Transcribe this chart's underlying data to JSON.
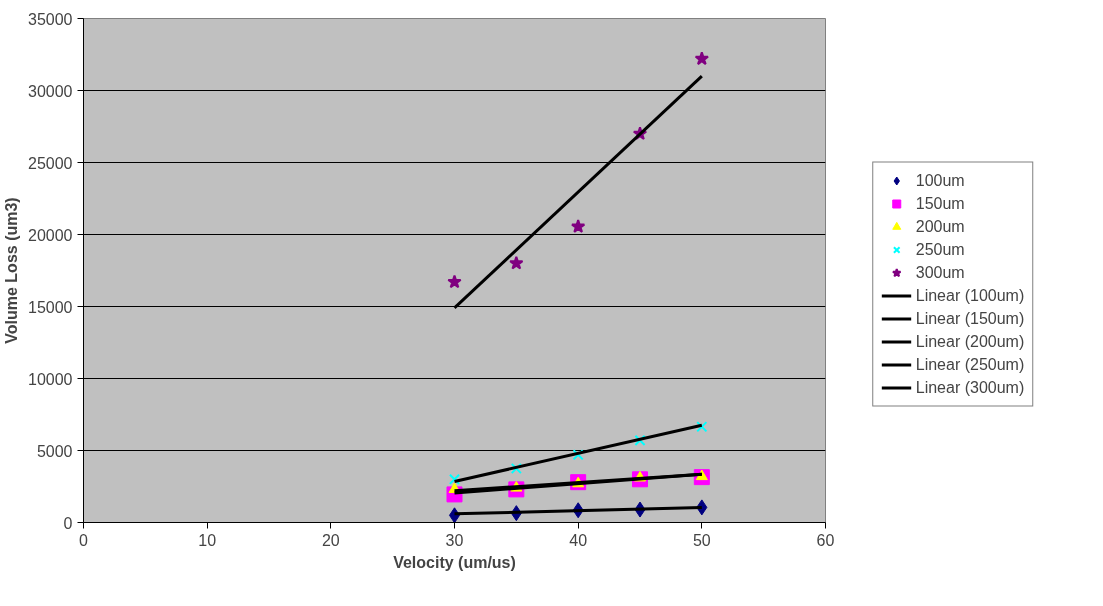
{
  "chart_data": {
    "type": "scatter",
    "xlabel": "Velocity (um/us)",
    "ylabel": "Volume Loss (um3)",
    "xlim": [
      0,
      60
    ],
    "xticks": [
      0,
      10,
      20,
      30,
      40,
      50,
      60
    ],
    "ylim": [
      0,
      35000
    ],
    "yticks": [
      0,
      5000,
      10000,
      15000,
      20000,
      25000,
      30000,
      35000
    ],
    "grid": "y",
    "legend": "right",
    "series": [
      {
        "name": "100um",
        "color": "#000080",
        "marker": "diamond",
        "x": [
          30,
          35,
          40,
          45,
          50
        ],
        "values": [
          500,
          650,
          850,
          900,
          1050
        ]
      },
      {
        "name": "150um",
        "color": "#ff00ff",
        "marker": "square",
        "x": [
          30,
          35,
          40,
          45,
          50
        ],
        "values": [
          1950,
          2300,
          2800,
          3000,
          3150
        ]
      },
      {
        "name": "200um",
        "color": "#ffff00",
        "marker": "triangle",
        "x": [
          30,
          35,
          40,
          45,
          50
        ],
        "values": [
          2300,
          2400,
          2700,
          3100,
          3200
        ]
      },
      {
        "name": "250um",
        "color": "#00ffff",
        "marker": "cross",
        "x": [
          30,
          35,
          40,
          45,
          50
        ],
        "values": [
          3000,
          3750,
          4700,
          5700,
          6650
        ]
      },
      {
        "name": "300um",
        "color": "#800080",
        "marker": "star",
        "x": [
          30,
          35,
          40,
          45,
          50
        ],
        "values": [
          16700,
          18000,
          20550,
          27000,
          32200
        ]
      },
      {
        "name": "Linear (100um)",
        "type": "line",
        "color": "#000000",
        "x": [
          30,
          50
        ],
        "values": [
          600,
          1050
        ]
      },
      {
        "name": "Linear (150um)",
        "type": "line",
        "color": "#000000",
        "x": [
          30,
          50
        ],
        "values": [
          2050,
          3350
        ]
      },
      {
        "name": "Linear (200um)",
        "type": "line",
        "color": "#000000",
        "x": [
          30,
          50
        ],
        "values": [
          2200,
          3350
        ]
      },
      {
        "name": "Linear (250um)",
        "type": "line",
        "color": "#000000",
        "x": [
          30,
          50
        ],
        "values": [
          2850,
          6750
        ]
      },
      {
        "name": "Linear (300um)",
        "type": "line",
        "color": "#000000",
        "x": [
          30,
          50
        ],
        "values": [
          14900,
          31000
        ]
      }
    ]
  }
}
